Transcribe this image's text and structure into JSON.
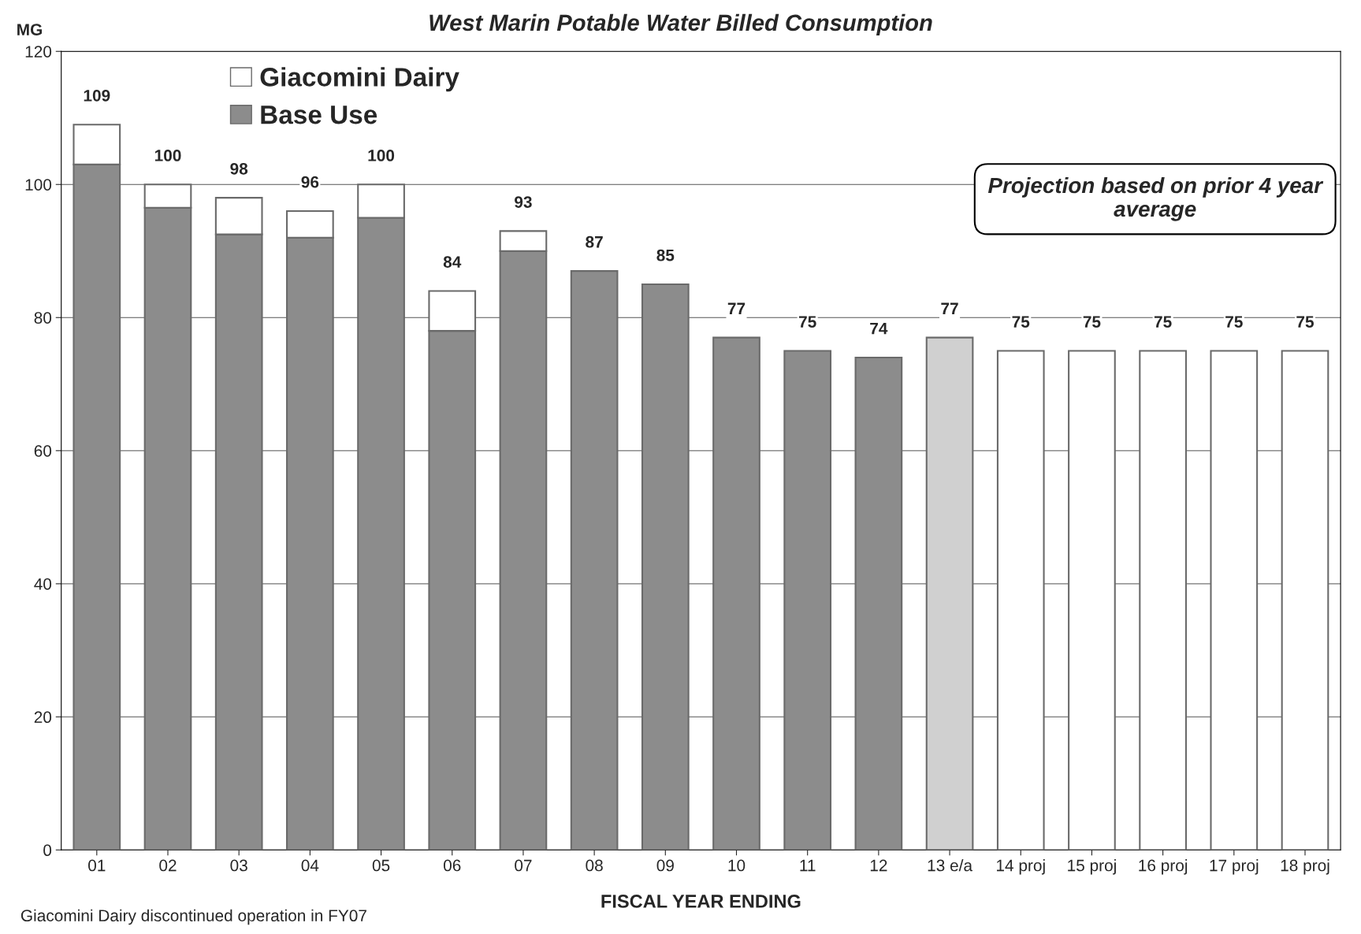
{
  "chart_data": {
    "type": "bar",
    "title": "West Marin Potable Water Billed Consumption",
    "ylabel": "MG",
    "xlabel": "FISCAL YEAR ENDING",
    "categories": [
      "01",
      "02",
      "03",
      "04",
      "05",
      "06",
      "07",
      "08",
      "09",
      "10",
      "11",
      "12",
      "13 e/a",
      "14 proj",
      "15 proj",
      "16 proj",
      "17 proj",
      "18 proj"
    ],
    "stacked": true,
    "series": [
      {
        "name": "Base Use",
        "color": "#8c8c8c",
        "colors": [
          "#8c8c8c",
          "#8c8c8c",
          "#8c8c8c",
          "#8c8c8c",
          "#8c8c8c",
          "#8c8c8c",
          "#8c8c8c",
          "#8c8c8c",
          "#8c8c8c",
          "#8c8c8c",
          "#8c8c8c",
          "#8c8c8c",
          "#d0d0d0",
          "#ffffff",
          "#ffffff",
          "#ffffff",
          "#ffffff",
          "#ffffff"
        ],
        "values": [
          103,
          96.5,
          92.5,
          92,
          95,
          78,
          90,
          87,
          85,
          77,
          75,
          74,
          77,
          75,
          75,
          75,
          75,
          75
        ]
      },
      {
        "name": "Giacomini Dairy",
        "color": "#ffffff",
        "values": [
          6,
          3.5,
          5.5,
          4,
          5,
          6,
          3,
          null,
          null,
          null,
          null,
          null,
          null,
          null,
          null,
          null,
          null,
          null
        ]
      }
    ],
    "totals": [
      "109",
      "100",
      "98",
      "96",
      "100",
      "84",
      "93",
      "87",
      "85",
      "77",
      "75",
      "74",
      "77",
      "75",
      "75",
      "75",
      "75",
      "75"
    ],
    "ylim": [
      0,
      120
    ],
    "yticks": [
      0,
      20,
      40,
      60,
      80,
      100,
      120
    ],
    "grid": "y",
    "legend": "top left",
    "annotations": [
      "Projection based on prior 4 year average",
      "Giacomini Dairy discontinued operation in FY07"
    ]
  }
}
